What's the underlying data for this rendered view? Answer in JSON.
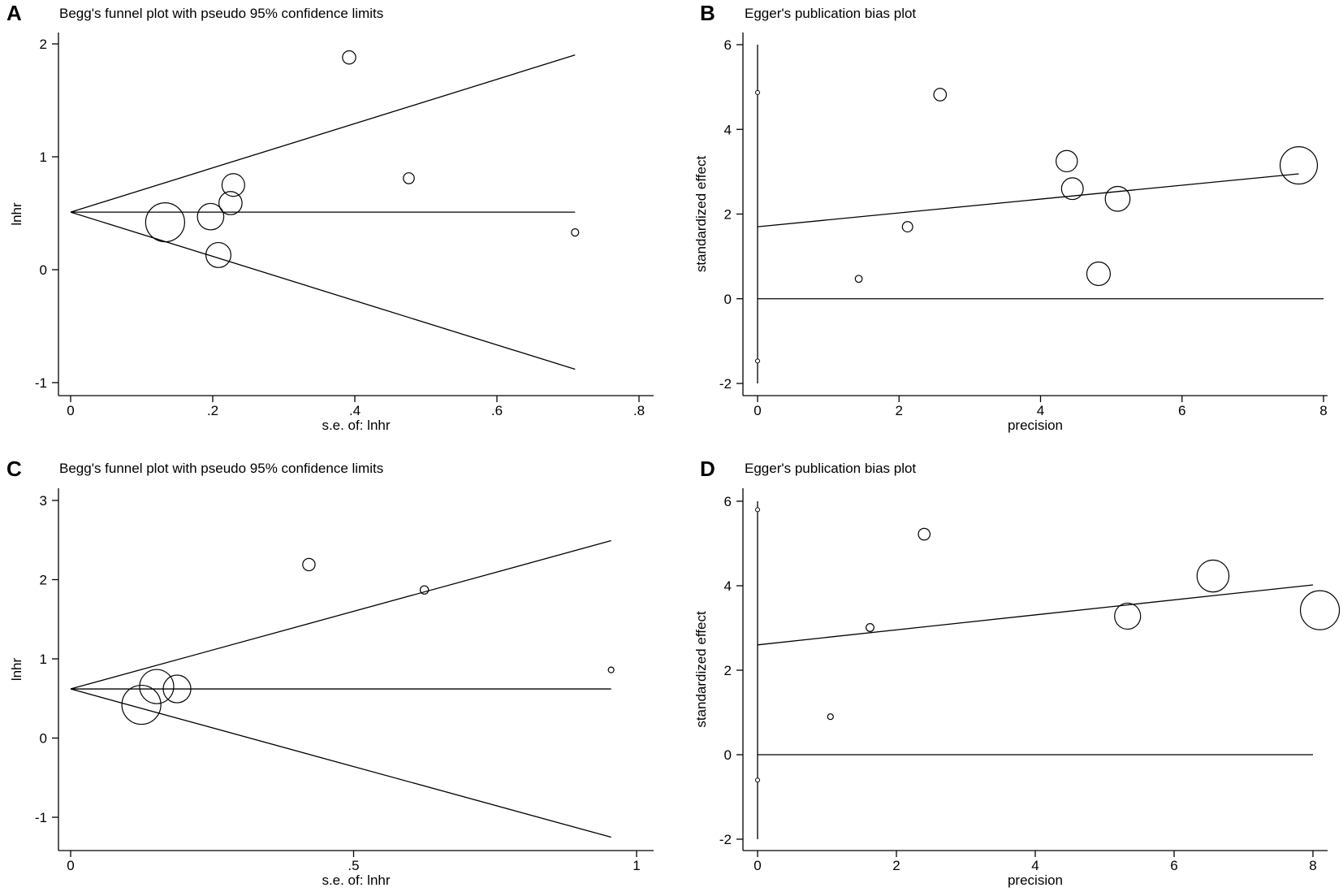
{
  "colors": {
    "ink": "#000000",
    "background": "#ffffff"
  },
  "chart_data": [
    {
      "panel": "A",
      "type": "scatter",
      "subtype": "funnel",
      "title": "Begg's funnel plot with pseudo 95% confidence limits",
      "xlabel": "s.e. of: lnhr",
      "ylabel": "lnhr",
      "xlim": [
        0,
        0.8
      ],
      "ylim": [
        -1,
        2
      ],
      "xticks": [
        0,
        0.2,
        0.4,
        0.6,
        0.8
      ],
      "xtick_labels": [
        "0",
        ".2",
        ".4",
        ".6",
        ".8"
      ],
      "yticks": [
        -1,
        0,
        1,
        2
      ],
      "ytick_labels": [
        "-1",
        "0",
        "1",
        "2"
      ],
      "pooled_estimate": 0.51,
      "max_se": 0.71,
      "points": [
        {
          "x": 0.133,
          "y": 0.42
        },
        {
          "x": 0.197,
          "y": 0.47
        },
        {
          "x": 0.208,
          "y": 0.13
        },
        {
          "x": 0.225,
          "y": 0.59
        },
        {
          "x": 0.229,
          "y": 0.75
        },
        {
          "x": 0.392,
          "y": 1.88
        },
        {
          "x": 0.476,
          "y": 0.81
        },
        {
          "x": 0.71,
          "y": 0.33
        }
      ]
    },
    {
      "panel": "B",
      "type": "scatter",
      "subtype": "egger",
      "title": "Egger's publication bias plot",
      "xlabel": "precision",
      "ylabel": "standardized effect",
      "xlim": [
        0,
        8
      ],
      "ylim": [
        -2,
        6
      ],
      "xticks": [
        0,
        2,
        4,
        6,
        8
      ],
      "xtick_labels": [
        "0",
        "2",
        "4",
        "6",
        "8"
      ],
      "yticks": [
        -2,
        0,
        2,
        4,
        6
      ],
      "ytick_labels": [
        "-2",
        "0",
        "2",
        "4",
        "6"
      ],
      "regression_line": {
        "x": [
          0,
          7.65
        ],
        "y": [
          1.7,
          2.95
        ]
      },
      "intercept_ci": [
        -1.47,
        4.87
      ],
      "points": [
        {
          "x": 1.43,
          "y": 0.47
        },
        {
          "x": 2.12,
          "y": 1.7
        },
        {
          "x": 2.58,
          "y": 4.82
        },
        {
          "x": 4.37,
          "y": 3.25
        },
        {
          "x": 4.45,
          "y": 2.6
        },
        {
          "x": 4.82,
          "y": 0.59
        },
        {
          "x": 5.09,
          "y": 2.36
        },
        {
          "x": 7.65,
          "y": 3.15
        }
      ]
    },
    {
      "panel": "C",
      "type": "scatter",
      "subtype": "funnel",
      "title": "Begg's funnel plot with pseudo 95% confidence limits",
      "xlabel": "s.e. of: lnhr",
      "ylabel": "lnhr",
      "xlim": [
        0,
        1
      ],
      "ylim": [
        -1,
        3
      ],
      "xticks": [
        0,
        0.5,
        1
      ],
      "xtick_labels": [
        "0",
        ".5",
        "1"
      ],
      "yticks": [
        -1,
        0,
        1,
        2,
        3
      ],
      "ytick_labels": [
        "-1",
        "0",
        "1",
        "2",
        "3"
      ],
      "pooled_estimate": 0.62,
      "max_se": 0.955,
      "points": [
        {
          "x": 0.125,
          "y": 0.42
        },
        {
          "x": 0.152,
          "y": 0.65
        },
        {
          "x": 0.188,
          "y": 0.62
        },
        {
          "x": 0.421,
          "y": 2.19
        },
        {
          "x": 0.625,
          "y": 1.87
        },
        {
          "x": 0.955,
          "y": 0.86
        }
      ]
    },
    {
      "panel": "D",
      "type": "scatter",
      "subtype": "egger",
      "title": "Egger's publication bias plot",
      "xlabel": "precision",
      "ylabel": "standardized effect",
      "xlim": [
        0,
        8
      ],
      "ylim": [
        -2,
        6
      ],
      "xticks": [
        0,
        2,
        4,
        6,
        8
      ],
      "xtick_labels": [
        "0",
        "2",
        "4",
        "6",
        "8"
      ],
      "yticks": [
        -2,
        0,
        2,
        4,
        6
      ],
      "ytick_labels": [
        "-2",
        "0",
        "2",
        "4",
        "6"
      ],
      "regression_line": {
        "x": [
          0,
          8.0
        ],
        "y": [
          2.6,
          4.02
        ]
      },
      "intercept_ci": [
        -0.6,
        5.8
      ],
      "points": [
        {
          "x": 1.05,
          "y": 0.9
        },
        {
          "x": 1.62,
          "y": 3.01
        },
        {
          "x": 2.4,
          "y": 5.22
        },
        {
          "x": 5.33,
          "y": 3.28
        },
        {
          "x": 6.56,
          "y": 4.23
        },
        {
          "x": 8.1,
          "y": 3.42
        }
      ]
    }
  ]
}
